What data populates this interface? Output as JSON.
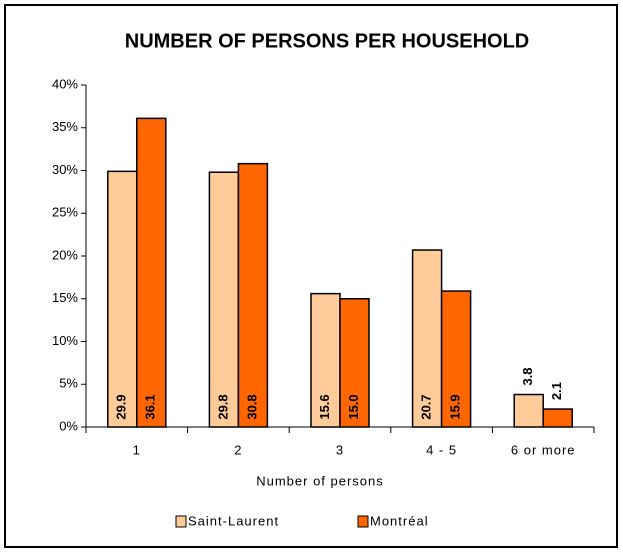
{
  "chart_data": {
    "type": "bar",
    "title": "NUMBER OF PERSONS PER HOUSEHOLD",
    "x_label": "Number of persons",
    "categories": [
      "1",
      "2",
      "3",
      "4 - 5",
      "6 or more"
    ],
    "series": [
      {
        "name": "Saint-Laurent",
        "color": "#FFCC99",
        "values": [
          29.9,
          29.8,
          15.6,
          20.7,
          3.8
        ],
        "value_labels": [
          "29.9",
          "29.8",
          "15.6",
          "20.7",
          "3.8"
        ]
      },
      {
        "name": "Montréal",
        "color": "#FF6600",
        "values": [
          36.1,
          30.8,
          15.0,
          15.9,
          2.1
        ],
        "value_labels": [
          "36.1",
          "30.8",
          "15.0",
          "15.9",
          "2.1"
        ]
      }
    ],
    "ylim": [
      0,
      40
    ],
    "yticks": [
      {
        "value": 0,
        "label": "0%"
      },
      {
        "value": 5,
        "label": "5%"
      },
      {
        "value": 10,
        "label": "10%"
      },
      {
        "value": 15,
        "label": "15%"
      },
      {
        "value": 20,
        "label": "20%"
      },
      {
        "value": 25,
        "label": "25%"
      },
      {
        "value": 30,
        "label": "30%"
      },
      {
        "value": 35,
        "label": "35%"
      },
      {
        "value": 40,
        "label": "40%"
      }
    ],
    "grid": false
  }
}
